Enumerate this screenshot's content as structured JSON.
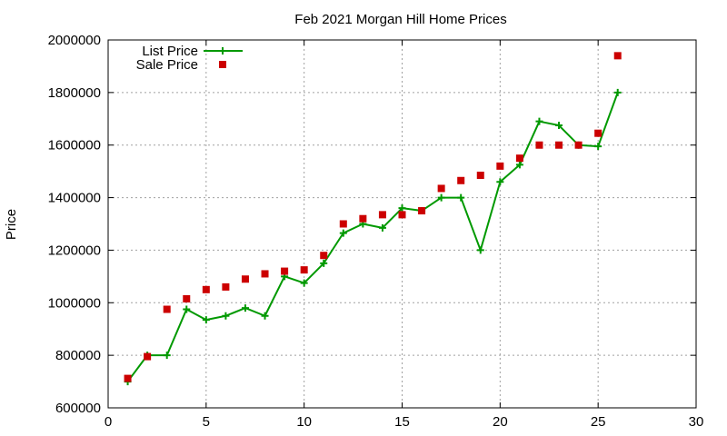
{
  "chart_data": {
    "type": "line",
    "title": "Feb 2021 Morgan Hill Home Prices",
    "xlabel": "",
    "ylabel": "Price",
    "xlim": [
      0,
      30
    ],
    "ylim": [
      600000,
      2000000
    ],
    "xticks": [
      0,
      5,
      10,
      15,
      20,
      25,
      30
    ],
    "yticks": [
      600000,
      800000,
      1000000,
      1200000,
      1400000,
      1600000,
      1800000,
      2000000
    ],
    "grid": true,
    "legend_position": "top-left",
    "series": [
      {
        "name": "List Price",
        "style": "line-with-plus-markers",
        "color": "#009900",
        "x": [
          1,
          2,
          3,
          4,
          5,
          6,
          7,
          8,
          9,
          10,
          11,
          12,
          13,
          14,
          15,
          16,
          17,
          18,
          19,
          20,
          21,
          22,
          23,
          24,
          25,
          26
        ],
        "values": [
          700000,
          800000,
          800000,
          975000,
          935000,
          950000,
          980000,
          950000,
          1100000,
          1075000,
          1150000,
          1265000,
          1300000,
          1285000,
          1360000,
          1350000,
          1400000,
          1400000,
          1200000,
          1460000,
          1525000,
          1690000,
          1675000,
          1600000,
          1595000,
          1800000
        ]
      },
      {
        "name": "Sale Price",
        "style": "square-markers",
        "color": "#cc0000",
        "x": [
          1,
          2,
          3,
          4,
          5,
          6,
          7,
          8,
          9,
          10,
          11,
          12,
          13,
          14,
          15,
          16,
          17,
          18,
          19,
          20,
          21,
          22,
          23,
          24,
          25,
          26
        ],
        "values": [
          712000,
          795000,
          975000,
          1015000,
          1050000,
          1060000,
          1090000,
          1110000,
          1120000,
          1125000,
          1180000,
          1300000,
          1320000,
          1335000,
          1335000,
          1350000,
          1435000,
          1465000,
          1485000,
          1520000,
          1550000,
          1600000,
          1600000,
          1600000,
          1645000,
          1940000
        ]
      }
    ]
  }
}
